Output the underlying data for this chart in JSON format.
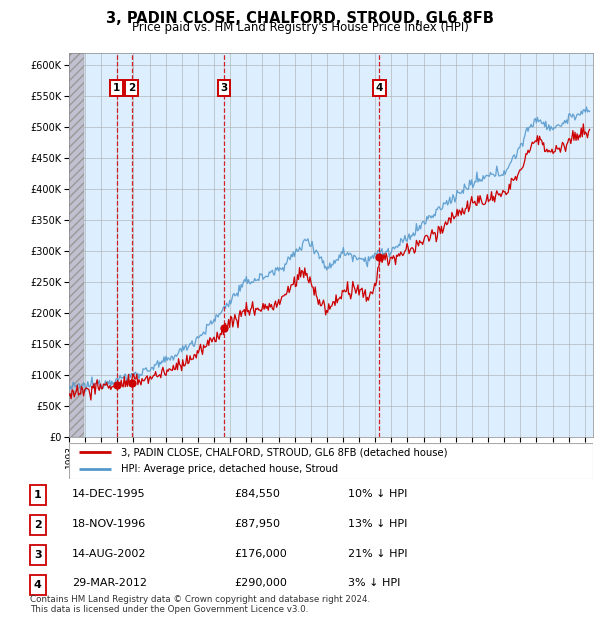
{
  "title": "3, PADIN CLOSE, CHALFORD, STROUD, GL6 8FB",
  "subtitle": "Price paid vs. HM Land Registry's House Price Index (HPI)",
  "legend_label_red": "3, PADIN CLOSE, CHALFORD, STROUD, GL6 8FB (detached house)",
  "legend_label_blue": "HPI: Average price, detached house, Stroud",
  "footer1": "Contains HM Land Registry data © Crown copyright and database right 2024.",
  "footer2": "This data is licensed under the Open Government Licence v3.0.",
  "transactions": [
    {
      "num": 1,
      "date": "14-DEC-1995",
      "price": 84550,
      "pct": "10%",
      "dir": "↓",
      "year": 1995.96
    },
    {
      "num": 2,
      "date": "18-NOV-1996",
      "price": 87950,
      "pct": "13%",
      "dir": "↓",
      "year": 1996.88
    },
    {
      "num": 3,
      "date": "14-AUG-2002",
      "price": 176000,
      "pct": "21%",
      "dir": "↓",
      "year": 2002.62
    },
    {
      "num": 4,
      "date": "29-MAR-2012",
      "price": 290000,
      "pct": "3%",
      "dir": "↓",
      "year": 2012.25
    }
  ],
  "ylim": [
    0,
    620000
  ],
  "yticks": [
    0,
    50000,
    100000,
    150000,
    200000,
    250000,
    300000,
    350000,
    400000,
    450000,
    500000,
    550000,
    600000
  ],
  "xlim": [
    1993.0,
    2025.5
  ],
  "hatch_end_year": 1993.9,
  "chart_bg": "#ddeeff",
  "hatch_color": "#c0c0d0",
  "grid_color": "#aaaaaa",
  "red_color": "#cc0000",
  "blue_color": "#5599cc",
  "fig_width": 6.0,
  "fig_height": 6.2,
  "dpi": 100
}
